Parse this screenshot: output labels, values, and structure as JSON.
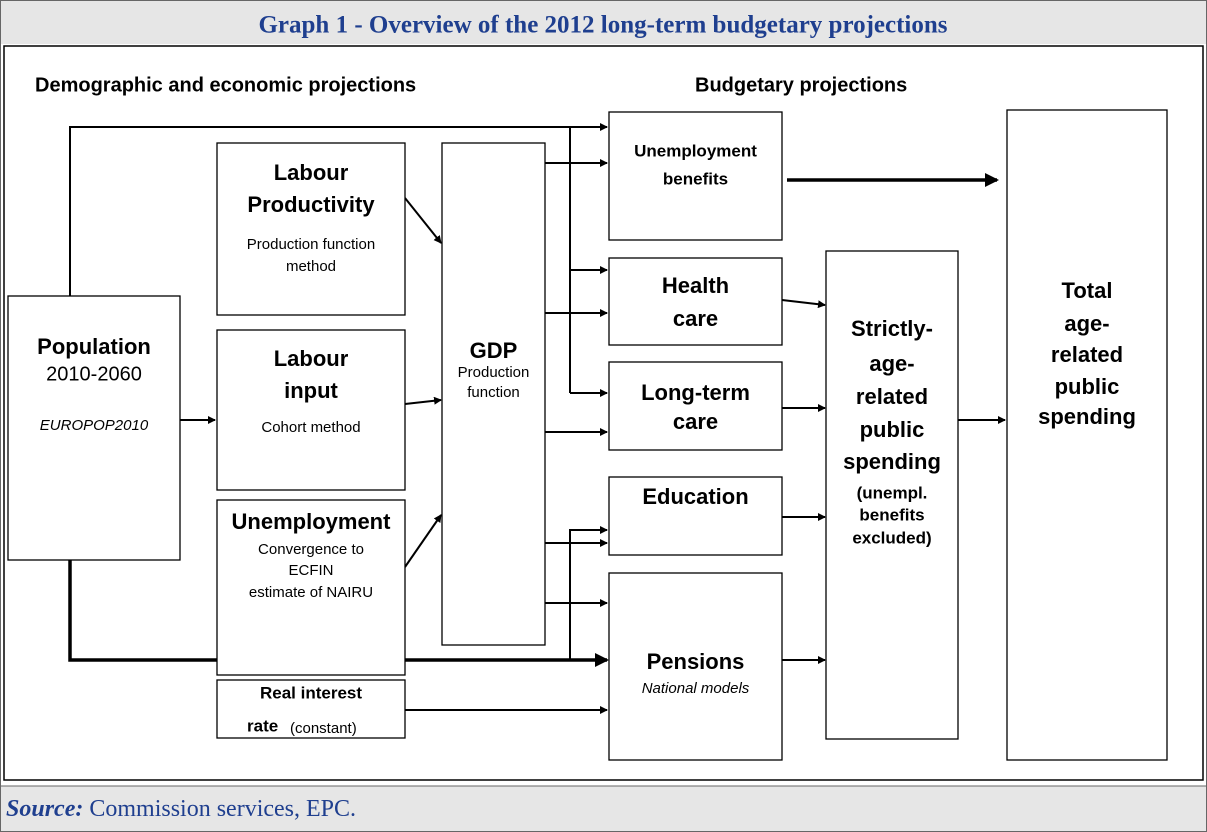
{
  "header": {
    "title": "Graph 1 - Overview of the 2012 long-term budgetary projections"
  },
  "headings": [
    "Demographic and economic projections",
    "Budgetary projections"
  ],
  "boxes": [
    {
      "lines": [
        "Population",
        "2010-2060",
        "EUROPOP2010"
      ]
    },
    {
      "lines": [
        "Labour",
        "Productivity",
        "Production function",
        "method"
      ]
    },
    {
      "lines": [
        "Labour",
        "input",
        "Cohort method"
      ]
    },
    {
      "lines": [
        "Unemployment",
        "Convergence to",
        "ECFIN",
        "estimate of NAIRU"
      ]
    },
    {
      "lines": [
        "Real interest",
        "rate",
        "(constant)"
      ]
    },
    {
      "lines": [
        "GDP",
        "Production",
        "function"
      ]
    },
    {
      "lines": [
        "Unemployment",
        "benefits"
      ]
    },
    {
      "lines": [
        "Health",
        "care"
      ]
    },
    {
      "lines": [
        "Long-term",
        "care"
      ]
    },
    {
      "lines": [
        "Education"
      ]
    },
    {
      "lines": [
        "Pensions",
        "National models"
      ]
    },
    {
      "lines": [
        "Strictly-",
        "age-",
        "related",
        "public",
        "spending",
        "(unempl.",
        "benefits",
        "excluded)"
      ]
    },
    {
      "lines": [
        "Total",
        "age-",
        "related",
        "public",
        "spending"
      ]
    }
  ],
  "footer": {
    "source_label": "Source:",
    "source_text": "Commission services, EPC."
  }
}
